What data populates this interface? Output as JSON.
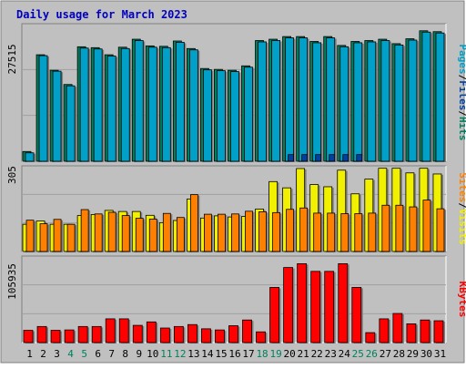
{
  "title": "Daily usage for March 2023",
  "colors": {
    "frame_bg": "#c0c0c0",
    "plot_bg": "#c0c0c0",
    "title": "#0000c0",
    "pages": "#00a0c8",
    "files": "#0040a0",
    "hits": "#00805c",
    "visits": "#f0f000",
    "sites": "#ff8000",
    "kbytes": "#ff0000",
    "weekend_label": "#00805c",
    "weekday_label": "#000000"
  },
  "chart_data": [
    {
      "type": "bar",
      "name": "hits-files-pages",
      "y_tick_label": "27515",
      "ylim": [
        0,
        31000
      ],
      "legend": [
        "Pages",
        "Files",
        "Hits"
      ],
      "categories": [
        "1",
        "2",
        "3",
        "4",
        "5",
        "6",
        "7",
        "8",
        "9",
        "10",
        "11",
        "12",
        "13",
        "14",
        "15",
        "16",
        "17",
        "18",
        "19",
        "20",
        "21",
        "22",
        "23",
        "24",
        "25",
        "26",
        "27",
        "28",
        "29",
        "30",
        "31"
      ],
      "series": [
        {
          "name": "Hits",
          "values": [
            2200,
            24000,
            20500,
            17300,
            25800,
            25600,
            24000,
            25700,
            27500,
            26000,
            25900,
            27100,
            25400,
            20900,
            20700,
            20500,
            21500,
            27200,
            27500,
            28100,
            28100,
            27000,
            28100,
            26100,
            27000,
            27200,
            27500,
            26500,
            27600,
            29400,
            29200
          ]
        },
        {
          "name": "Files",
          "values": [
            1900,
            23800,
            20300,
            17000,
            25500,
            25300,
            23700,
            25400,
            27200,
            25700,
            25600,
            26800,
            25100,
            20600,
            20400,
            20200,
            21200,
            26900,
            27200,
            27800,
            27800,
            26700,
            27800,
            25800,
            26700,
            26900,
            27200,
            26200,
            27300,
            29100,
            28900
          ]
        },
        {
          "name": "Pages",
          "values": [
            0,
            0,
            0,
            0,
            0,
            0,
            0,
            0,
            0,
            0,
            0,
            0,
            0,
            0,
            0,
            0,
            0,
            0,
            0,
            1500,
            1500,
            1500,
            1500,
            1500,
            1500,
            0,
            0,
            0,
            0,
            0,
            0
          ]
        }
      ]
    },
    {
      "type": "bar",
      "name": "visits-sites",
      "y_tick_label": "305",
      "ylim": [
        0,
        305
      ],
      "legend": [
        "Sites",
        "Visits"
      ],
      "categories": [
        "1",
        "2",
        "3",
        "4",
        "5",
        "6",
        "7",
        "8",
        "9",
        "10",
        "11",
        "12",
        "13",
        "14",
        "15",
        "16",
        "17",
        "18",
        "19",
        "20",
        "21",
        "22",
        "23",
        "24",
        "25",
        "26",
        "27",
        "28",
        "29",
        "30",
        "31"
      ],
      "series": [
        {
          "name": "Visits",
          "values": [
            100,
            112,
            100,
            100,
            132,
            136,
            151,
            147,
            147,
            133,
            106,
            114,
            193,
            123,
            131,
            127,
            129,
            156,
            257,
            234,
            305,
            246,
            238,
            299,
            212,
            266,
            306,
            306,
            289,
            306,
            285
          ]
        },
        {
          "name": "Sites",
          "values": [
            115,
            102,
            118,
            100,
            154,
            138,
            144,
            132,
            122,
            119,
            140,
            125,
            209,
            137,
            137,
            138,
            148,
            146,
            143,
            155,
            160,
            141,
            141,
            139,
            139,
            141,
            170,
            170,
            164,
            189,
            157
          ]
        }
      ]
    },
    {
      "type": "bar",
      "name": "kbytes",
      "y_tick_label": "105935",
      "ylim": [
        0,
        113000
      ],
      "legend": [
        "KBytes"
      ],
      "categories": [
        "1",
        "2",
        "3",
        "4",
        "5",
        "6",
        "7",
        "8",
        "9",
        "10",
        "11",
        "12",
        "13",
        "14",
        "15",
        "16",
        "17",
        "18",
        "19",
        "20",
        "21",
        "22",
        "23",
        "24",
        "25",
        "26",
        "27",
        "28",
        "29",
        "30",
        "31"
      ],
      "series": [
        {
          "name": "KBytes",
          "values": [
            16000,
            21000,
            16000,
            16500,
            21000,
            21000,
            31000,
            31000,
            22500,
            27000,
            19000,
            21000,
            23500,
            18000,
            16500,
            22000,
            29500,
            14000,
            72000,
            98000,
            103000,
            93000,
            93000,
            103000,
            72000,
            13000,
            31000,
            38000,
            24500,
            29500,
            28500
          ]
        }
      ]
    }
  ],
  "weekend_days": [
    4,
    5,
    11,
    12,
    18,
    19,
    25,
    26
  ]
}
